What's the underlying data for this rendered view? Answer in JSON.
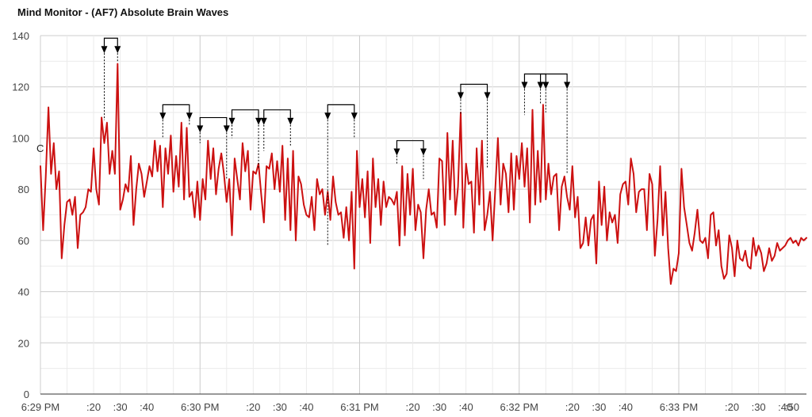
{
  "title": "Mind Monitor - (AF7) Absolute Brain Waves",
  "chart_data": {
    "type": "line",
    "title": "Mind Monitor - (AF7) Absolute Brain Waves",
    "xlabel": "",
    "ylabel": "",
    "ylim": [
      0,
      140
    ],
    "xlim_seconds": [
      0,
      288
    ],
    "yticks": [
      "0",
      "20",
      "40",
      "60",
      "80",
      "100",
      "120",
      "140"
    ],
    "xticks": [
      {
        "t": 0,
        "label": "6:29 PM"
      },
      {
        "t": 20,
        "label": ":20"
      },
      {
        "t": 30,
        "label": ":30"
      },
      {
        "t": 40,
        "label": ":40"
      },
      {
        "t": 60,
        "label": "6:30 PM"
      },
      {
        "t": 80,
        "label": ":20"
      },
      {
        "t": 90,
        "label": ":30"
      },
      {
        "t": 100,
        "label": ":40"
      },
      {
        "t": 120,
        "label": "6:31 PM"
      },
      {
        "t": 140,
        "label": ":20"
      },
      {
        "t": 150,
        "label": ":30"
      },
      {
        "t": 160,
        "label": ":40"
      },
      {
        "t": 180,
        "label": "6:32 PM"
      },
      {
        "t": 200,
        "label": ":20"
      },
      {
        "t": 210,
        "label": ":30"
      },
      {
        "t": 220,
        "label": ":40"
      },
      {
        "t": 240,
        "label": "6:33 PM"
      },
      {
        "t": 260,
        "label": ":20"
      },
      {
        "t": 270,
        "label": ":30"
      },
      {
        "t": 280,
        "label": ":40"
      },
      {
        "t": 290,
        "label": ":50"
      }
    ],
    "grid": true,
    "series": [
      {
        "label": "C",
        "color": "#cc1111",
        "x": [
          0,
          1,
          2,
          3,
          4,
          5,
          6,
          7,
          8,
          9,
          10,
          11,
          12,
          13,
          14,
          15,
          16,
          17,
          18,
          19,
          20,
          21,
          22,
          23,
          24,
          25,
          26,
          27,
          28,
          29,
          30,
          31,
          32,
          33,
          34,
          35,
          36,
          37,
          38,
          39,
          40,
          41,
          42,
          43,
          44,
          45,
          46,
          47,
          48,
          49,
          50,
          51,
          52,
          53,
          54,
          55,
          56,
          57,
          58,
          59,
          60,
          61,
          62,
          63,
          64,
          65,
          66,
          67,
          68,
          69,
          70,
          71,
          72,
          73,
          74,
          75,
          76,
          77,
          78,
          79,
          80,
          81,
          82,
          83,
          84,
          85,
          86,
          87,
          88,
          89,
          90,
          91,
          92,
          93,
          94,
          95,
          96,
          97,
          98,
          99,
          100,
          101,
          102,
          103,
          104,
          105,
          106,
          107,
          108,
          109,
          110,
          111,
          112,
          113,
          114,
          115,
          116,
          117,
          118,
          119,
          120,
          121,
          122,
          123,
          124,
          125,
          126,
          127,
          128,
          129,
          130,
          131,
          132,
          133,
          134,
          135,
          136,
          137,
          138,
          139,
          140,
          141,
          142,
          143,
          144,
          145,
          146,
          147,
          148,
          149,
          150,
          151,
          152,
          153,
          154,
          155,
          156,
          157,
          158,
          159,
          160,
          161,
          162,
          163,
          164,
          165,
          166,
          167,
          168,
          169,
          170,
          171,
          172,
          173,
          174,
          175,
          176,
          177,
          178,
          179,
          180,
          181,
          182,
          183,
          184,
          185,
          186,
          187,
          188,
          189,
          190,
          191,
          192,
          193,
          194,
          195,
          196,
          197,
          198,
          199,
          200,
          201,
          202,
          203,
          204,
          205,
          206,
          207,
          208,
          209,
          210,
          211,
          212,
          213,
          214,
          215,
          216,
          217,
          218,
          219,
          220,
          221,
          222,
          223,
          224,
          225,
          226,
          227,
          228,
          229,
          230,
          231,
          232,
          233,
          234,
          235,
          236,
          237,
          238,
          239,
          240,
          241,
          242,
          243,
          244,
          245,
          246,
          247,
          248,
          249,
          250,
          251,
          252,
          253,
          254,
          255,
          256,
          257,
          258,
          259,
          260,
          261,
          262,
          263,
          264,
          265,
          266,
          267,
          268,
          269,
          270,
          271,
          272,
          273,
          274,
          275,
          276,
          277,
          278,
          279,
          280,
          281,
          282,
          283,
          284,
          285,
          286,
          287,
          288
        ],
        "y": [
          89,
          64,
          85,
          112,
          86,
          98,
          80,
          87,
          53,
          66,
          75,
          76,
          70,
          77,
          57,
          70,
          71,
          73,
          80,
          79,
          96,
          80,
          74,
          108,
          98,
          106,
          86,
          95,
          86,
          129,
          72,
          76,
          82,
          79,
          93,
          66,
          80,
          90,
          86,
          77,
          83,
          89,
          85,
          99,
          87,
          97,
          73,
          96,
          86,
          101,
          79,
          93,
          81,
          106,
          76,
          104,
          77,
          79,
          69,
          83,
          68,
          84,
          76,
          99,
          84,
          96,
          78,
          88,
          94,
          86,
          75,
          84,
          62,
          92,
          84,
          76,
          98,
          87,
          95,
          72,
          87,
          86,
          90,
          78,
          67,
          89,
          88,
          94,
          80,
          91,
          79,
          97,
          68,
          92,
          64,
          95,
          60,
          85,
          82,
          74,
          70,
          69,
          77,
          64,
          84,
          78,
          80,
          70,
          79,
          68,
          85,
          75,
          70,
          71,
          61,
          73,
          60,
          79,
          49,
          95,
          73,
          84,
          69,
          87,
          59,
          92,
          73,
          84,
          66,
          83,
          73,
          77,
          76,
          74,
          79,
          58,
          89,
          62,
          86,
          70,
          88,
          64,
          74,
          71,
          53,
          72,
          80,
          70,
          71,
          65,
          92,
          91,
          66,
          102,
          76,
          99,
          70,
          81,
          110,
          65,
          90,
          82,
          83,
          63,
          96,
          74,
          99,
          64,
          70,
          79,
          60,
          80,
          100,
          74,
          90,
          86,
          71,
          94,
          72,
          93,
          84,
          98,
          81,
          96,
          67,
          111,
          74,
          95,
          75,
          113,
          76,
          90,
          78,
          85,
          86,
          64,
          81,
          85,
          77,
          72,
          89,
          69,
          77,
          57,
          59,
          69,
          58,
          68,
          70,
          51,
          83,
          66,
          81,
          60,
          71,
          67,
          70,
          59,
          78,
          82,
          83,
          74,
          92,
          86,
          71,
          79,
          80,
          80,
          64,
          86,
          82,
          54,
          68,
          89,
          62,
          79,
          57,
          43,
          49,
          48,
          55,
          88,
          73,
          66,
          59,
          56,
          63,
          72,
          60,
          59,
          61,
          53,
          70,
          71,
          58,
          64,
          50,
          45,
          47,
          62,
          57,
          46,
          60,
          53,
          52,
          56,
          50,
          49,
          61,
          54,
          58,
          55,
          48,
          51,
          57,
          52,
          54,
          59,
          56,
          57,
          58,
          60,
          61,
          59,
          60,
          58,
          61,
          60,
          61
        ]
      }
    ]
  }
}
